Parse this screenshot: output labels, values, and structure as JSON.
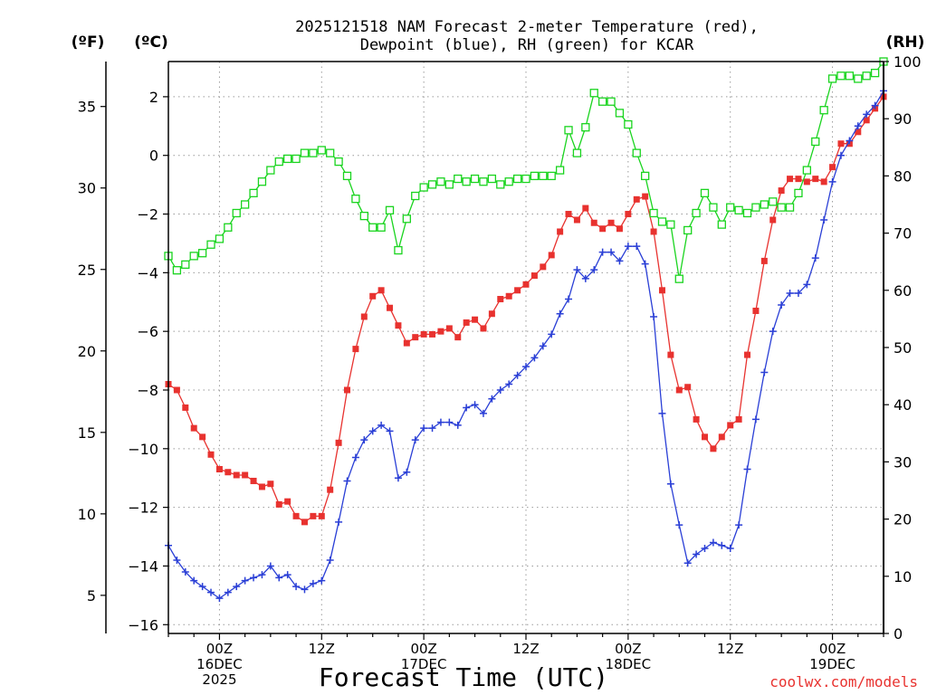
{
  "title": {
    "line1": "2025121518 NAM Forecast 2-meter Temperature (red),",
    "line2": "Dewpoint (blue), RH (green) for KCAR"
  },
  "units": {
    "fahrenheit": "(ºF)",
    "celsius": "(ºC)",
    "rh": "(RH)"
  },
  "xlabel": "Forecast Time (UTC)",
  "credit": "coolwx.com/models",
  "colors": {
    "temperature": "#e8322f",
    "dewpoint": "#2a3fd6",
    "rh": "#19d41e",
    "axis": "#000000",
    "grid": "#9a9a9a",
    "credit": "#e8322f"
  },
  "chart_data": {
    "type": "line",
    "title": "2025121518 NAM Forecast 2-meter Temperature (red), Dewpoint (blue), RH (green) for KCAR",
    "xlabel": "Forecast Time (UTC)",
    "x_units": "forecast hour from 2025-12-15 18Z",
    "xlim": [
      0,
      84
    ],
    "x_ticks": [
      {
        "x": 6,
        "lines": [
          "00Z",
          "16DEC",
          "2025"
        ]
      },
      {
        "x": 18,
        "lines": [
          "12Z"
        ]
      },
      {
        "x": 30,
        "lines": [
          "00Z",
          "17DEC"
        ]
      },
      {
        "x": 42,
        "lines": [
          "12Z"
        ]
      },
      {
        "x": 54,
        "lines": [
          "00Z",
          "18DEC"
        ]
      },
      {
        "x": 66,
        "lines": [
          "12Z"
        ]
      },
      {
        "x": 78,
        "lines": [
          "00Z",
          "19DEC"
        ]
      }
    ],
    "y_left_c": {
      "label": "(ºC)",
      "ylim": [
        -16.3,
        3.2
      ],
      "ticks": [
        -16,
        -14,
        -12,
        -10,
        -8,
        -6,
        -4,
        -2,
        0,
        2
      ],
      "tick_labels": [
        "−16",
        "−14",
        "−12",
        "−10",
        "−8",
        "−6",
        "−4",
        "−2",
        "0",
        "2"
      ]
    },
    "y_left_f": {
      "label": "(ºF)",
      "ticks": [
        5,
        10,
        15,
        20,
        25,
        30,
        35
      ]
    },
    "y_right_rh": {
      "label": "(RH)",
      "ylim": [
        0,
        100
      ],
      "ticks": [
        0,
        10,
        20,
        30,
        40,
        50,
        60,
        70,
        80,
        90,
        100
      ]
    },
    "series": [
      {
        "name": "Temperature",
        "axis": "celsius",
        "marker": "filled-square",
        "color": "#e8322f",
        "x": [
          0,
          1,
          2,
          3,
          4,
          5,
          6,
          7,
          8,
          9,
          10,
          11,
          12,
          13,
          14,
          15,
          16,
          17,
          18,
          19,
          20,
          21,
          22,
          23,
          24,
          25,
          26,
          27,
          28,
          29,
          30,
          31,
          32,
          33,
          34,
          35,
          36,
          37,
          38,
          39,
          40,
          41,
          42,
          43,
          44,
          45,
          46,
          47,
          48,
          49,
          50,
          51,
          52,
          53,
          54,
          55,
          56,
          57,
          58,
          59,
          60,
          61,
          62,
          63,
          64,
          65,
          66,
          67,
          68,
          69,
          70,
          71,
          72,
          73,
          74,
          75,
          76,
          77,
          78,
          79,
          80,
          81,
          82,
          83,
          84
        ],
        "values": [
          -7.8,
          -8.0,
          -8.6,
          -9.3,
          -9.6,
          -10.2,
          -10.7,
          -10.8,
          -10.9,
          -10.9,
          -11.1,
          -11.3,
          -11.2,
          -11.9,
          -11.8,
          -12.3,
          -12.5,
          -12.3,
          -12.3,
          -11.4,
          -9.8,
          -8.0,
          -6.6,
          -5.5,
          -4.8,
          -4.6,
          -5.2,
          -5.8,
          -6.4,
          -6.2,
          -6.1,
          -6.1,
          -6.0,
          -5.9,
          -6.2,
          -5.7,
          -5.6,
          -5.9,
          -5.4,
          -4.9,
          -4.8,
          -4.6,
          -4.4,
          -4.1,
          -3.8,
          -3.4,
          -2.6,
          -2.0,
          -2.2,
          -1.8,
          -2.3,
          -2.5,
          -2.3,
          -2.5,
          -2.0,
          -1.5,
          -1.4,
          -2.6,
          -4.6,
          -6.8,
          -8.0,
          -7.9,
          -9.0,
          -9.6,
          -10.0,
          -9.6,
          -9.2,
          -9.0,
          -6.8,
          -5.3,
          -3.6,
          -2.2,
          -1.2,
          -0.8,
          -0.8,
          -0.9,
          -0.8,
          -0.9,
          -0.4,
          0.4,
          0.4,
          0.8,
          1.2,
          1.6,
          2.0
        ]
      },
      {
        "name": "Dewpoint",
        "axis": "celsius",
        "marker": "plus",
        "color": "#2a3fd6",
        "x": [
          0,
          1,
          2,
          3,
          4,
          5,
          6,
          7,
          8,
          9,
          10,
          11,
          12,
          13,
          14,
          15,
          16,
          17,
          18,
          19,
          20,
          21,
          22,
          23,
          24,
          25,
          26,
          27,
          28,
          29,
          30,
          31,
          32,
          33,
          34,
          35,
          36,
          37,
          38,
          39,
          40,
          41,
          42,
          43,
          44,
          45,
          46,
          47,
          48,
          49,
          50,
          51,
          52,
          53,
          54,
          55,
          56,
          57,
          58,
          59,
          60,
          61,
          62,
          63,
          64,
          65,
          66,
          67,
          68,
          69,
          70,
          71,
          72,
          73,
          74,
          75,
          76,
          77,
          78,
          79,
          80,
          81,
          82,
          83,
          84
        ],
        "values": [
          -13.3,
          -13.8,
          -14.2,
          -14.5,
          -14.7,
          -14.9,
          -15.1,
          -14.9,
          -14.7,
          -14.5,
          -14.4,
          -14.3,
          -14.0,
          -14.4,
          -14.3,
          -14.7,
          -14.8,
          -14.6,
          -14.5,
          -13.8,
          -12.5,
          -11.1,
          -10.3,
          -9.7,
          -9.4,
          -9.2,
          -9.4,
          -11.0,
          -10.8,
          -9.7,
          -9.3,
          -9.3,
          -9.1,
          -9.1,
          -9.2,
          -8.6,
          -8.5,
          -8.8,
          -8.3,
          -8.0,
          -7.8,
          -7.5,
          -7.2,
          -6.9,
          -6.5,
          -6.1,
          -5.4,
          -4.9,
          -3.9,
          -4.2,
          -3.9,
          -3.3,
          -3.3,
          -3.6,
          -3.1,
          -3.1,
          -3.7,
          -5.5,
          -8.8,
          -11.2,
          -12.6,
          -13.9,
          -13.6,
          -13.4,
          -13.2,
          -13.3,
          -13.4,
          -12.6,
          -10.7,
          -9.0,
          -7.4,
          -6.0,
          -5.1,
          -4.7,
          -4.7,
          -4.4,
          -3.5,
          -2.2,
          -0.9,
          0.0,
          0.5,
          1.0,
          1.4,
          1.7,
          2.2
        ]
      },
      {
        "name": "RH",
        "axis": "rh",
        "marker": "open-square",
        "color": "#19d41e",
        "x": [
          0,
          1,
          2,
          3,
          4,
          5,
          6,
          7,
          8,
          9,
          10,
          11,
          12,
          13,
          14,
          15,
          16,
          17,
          18,
          19,
          20,
          21,
          22,
          23,
          24,
          25,
          26,
          27,
          28,
          29,
          30,
          31,
          32,
          33,
          34,
          35,
          36,
          37,
          38,
          39,
          40,
          41,
          42,
          43,
          44,
          45,
          46,
          47,
          48,
          49,
          50,
          51,
          52,
          53,
          54,
          55,
          56,
          57,
          58,
          59,
          60,
          61,
          62,
          63,
          64,
          65,
          66,
          67,
          68,
          69,
          70,
          71,
          72,
          73,
          74,
          75,
          76,
          77,
          78,
          79,
          80,
          81,
          82,
          83,
          84
        ],
        "values": [
          66,
          63.5,
          64.5,
          66,
          66.5,
          68,
          69,
          71,
          73.5,
          75,
          77,
          79,
          81,
          82.5,
          83,
          83,
          84,
          84,
          84.5,
          84,
          82.5,
          80,
          76,
          73,
          71,
          71,
          74,
          67,
          72.5,
          76.5,
          78,
          78.5,
          79,
          78.5,
          79.5,
          79,
          79.5,
          79,
          79.5,
          78.5,
          79,
          79.5,
          79.5,
          80,
          80,
          80,
          81,
          88,
          84,
          88.5,
          94.5,
          93,
          93,
          91,
          89,
          84,
          80,
          73.5,
          72,
          71.5,
          62,
          70.5,
          73.5,
          77,
          74.5,
          71.5,
          74.5,
          74,
          73.5,
          74.5,
          75,
          75.5,
          74.5,
          74.5,
          77,
          81,
          86,
          91.5,
          97,
          97.5,
          97.5,
          97,
          97.5,
          98,
          100
        ]
      }
    ]
  }
}
